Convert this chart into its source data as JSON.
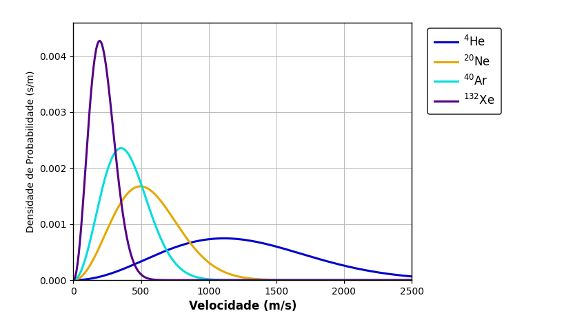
{
  "title": "",
  "xlabel": "Velocidade (m/s)",
  "ylabel": "Densidade de Probabilidade (s/m)",
  "xlim": [
    0,
    2500
  ],
  "ylim": [
    0,
    0.0046
  ],
  "T": 298.15,
  "gases": [
    {
      "name": "$^{4}$He",
      "M": 0.004003,
      "color": "#0000cc",
      "lw": 2.2
    },
    {
      "name": "$^{20}$Ne",
      "M": 0.02018,
      "color": "#e6a800",
      "lw": 2.2
    },
    {
      "name": "$^{40}$Ar",
      "M": 0.039948,
      "color": "#00dddd",
      "lw": 2.2
    },
    {
      "name": "$^{132}$Xe",
      "M": 0.131293,
      "color": "#550088",
      "lw": 2.2
    }
  ],
  "grid_color": "#bbbbbb",
  "bg_color": "#ffffff",
  "xlabel_fontsize": 12,
  "ylabel_fontsize": 10,
  "tick_fontsize": 10,
  "legend_fontsize": 12,
  "yticks": [
    0.0,
    0.001,
    0.002,
    0.003,
    0.004
  ],
  "xticks": [
    0,
    500,
    1000,
    1500,
    2000,
    2500
  ]
}
